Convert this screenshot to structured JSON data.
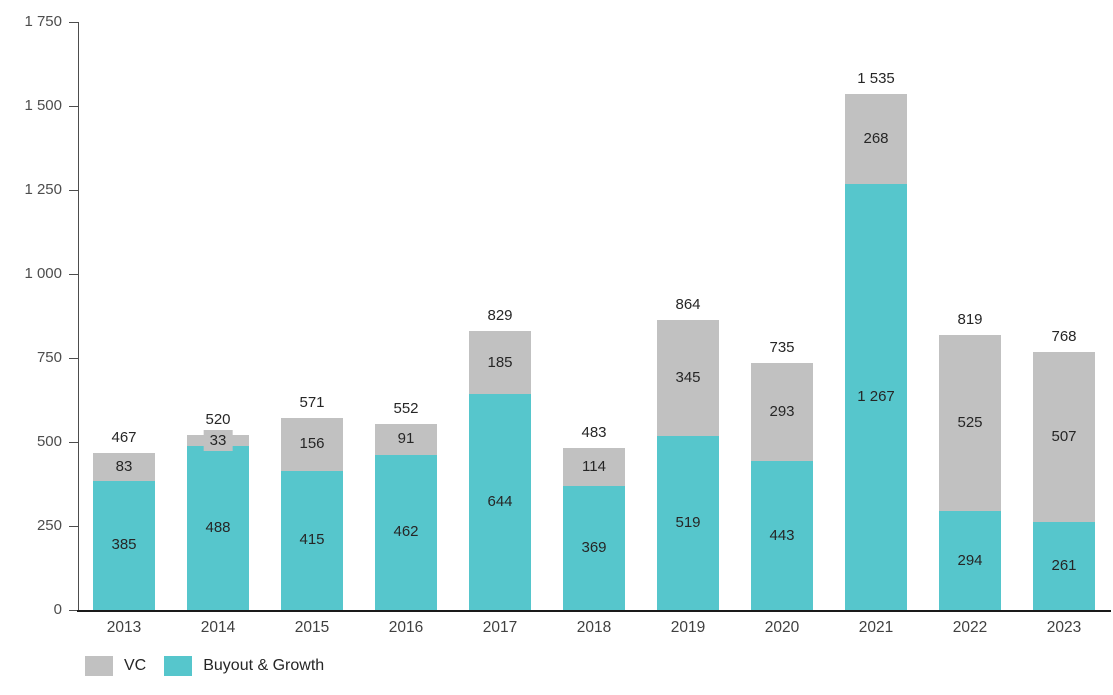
{
  "chart_data": {
    "type": "bar",
    "stacked": true,
    "title": "",
    "xlabel": "",
    "ylabel": "",
    "categories": [
      "2013",
      "2014",
      "2015",
      "2016",
      "2017",
      "2018",
      "2019",
      "2020",
      "2021",
      "2022",
      "2023"
    ],
    "series": [
      {
        "name": "VC",
        "color": "#c1c1c1",
        "values": [
          83,
          33,
          156,
          91,
          185,
          114,
          345,
          293,
          268,
          525,
          507
        ]
      },
      {
        "name": "Buyout & Growth",
        "color": "#56c6cc",
        "values": [
          385,
          488,
          415,
          462,
          644,
          369,
          519,
          443,
          1267,
          294,
          261
        ]
      }
    ],
    "totals": [
      467,
      520,
      571,
      552,
      829,
      483,
      864,
      735,
      1535,
      819,
      768
    ],
    "ylim": [
      0,
      1750
    ],
    "yticks": [
      0,
      250,
      500,
      750,
      1000,
      1250,
      1500,
      1750
    ],
    "ytick_labels": [
      "0",
      "250",
      "500",
      "750",
      "1 000",
      "1 250",
      "1 500",
      "1 750"
    ],
    "number_format": "space-thousands",
    "grid": false,
    "legend_position": "bottom-left",
    "colors": {
      "vc_gray": "#c1c1c1",
      "buyout_teal": "#56c6cc",
      "axis": "#4d4d4d",
      "label_text": "#262626"
    }
  }
}
